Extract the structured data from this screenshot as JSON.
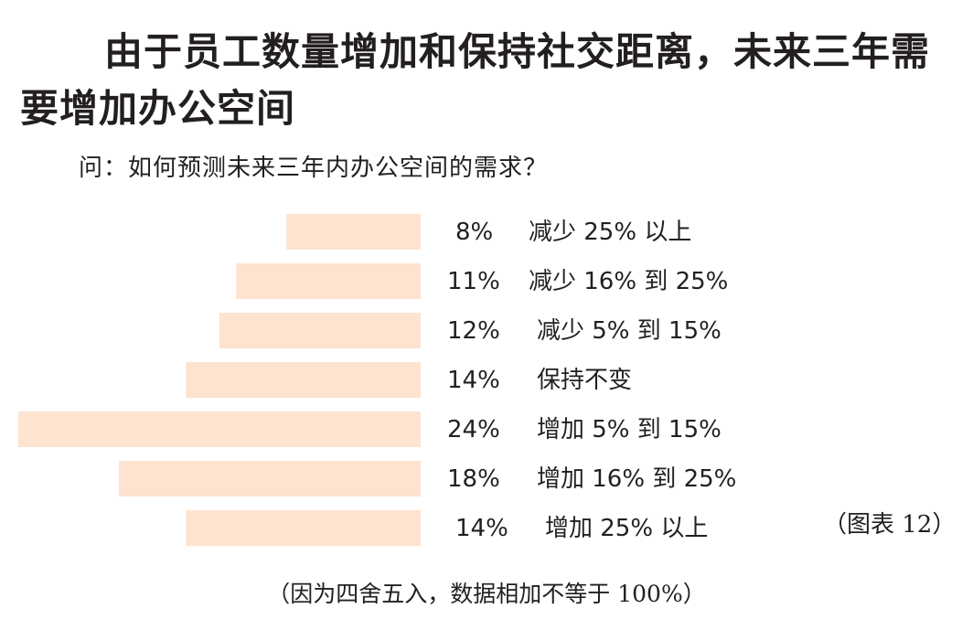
{
  "chart_data": {
    "type": "bar",
    "orientation": "horizontal",
    "title": "由于员工数量增加和保持社交距离，未来三年需要增加办公空间",
    "subtitle": "问：如何预测未来三年内办公空间的需求？",
    "categories": [
      "减少 25% 以上",
      "减少 16% 到 25%",
      "减少 5% 到 15%",
      "保持不变",
      "增加 5% 到 15%",
      "增加 16% 到 25%",
      "增加 25% 以上"
    ],
    "value_labels": [
      "8%",
      "11%",
      "12%",
      "14%",
      "24%",
      "18%",
      "14%"
    ],
    "values": [
      8,
      11,
      12,
      14,
      24,
      18,
      14
    ],
    "xlim": [
      0,
      24
    ],
    "bar_color": "#fde3d0",
    "grid": false,
    "legend": "none",
    "figure_note": "（图表 12）",
    "footnote": "（因为四舍五入，数据相加不等于 100%）"
  }
}
